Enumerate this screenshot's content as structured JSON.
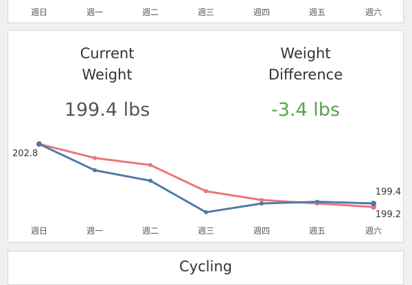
{
  "days": [
    "週日",
    "週一",
    "週二",
    "週三",
    "週四",
    "週五",
    "週六"
  ],
  "kpis": {
    "current_weight_title": "Current\nWeight",
    "current_weight_value": "199.4 lbs",
    "difference_title": "Weight\nDifference",
    "difference_value": "-3.4 lbs"
  },
  "colors": {
    "blue_series": "#4e79a7",
    "red_series": "#e8777a",
    "positive_change": "#59a14f"
  },
  "chart_data": {
    "type": "line",
    "categories": [
      "週日",
      "週一",
      "週二",
      "週三",
      "週四",
      "週五",
      "週六"
    ],
    "series": [
      {
        "values": [
          202.8,
          201.3,
          200.7,
          198.9,
          199.4,
          199.5,
          199.4
        ],
        "color": "#4e79a7"
      },
      {
        "values": [
          202.8,
          202.0,
          201.6,
          200.1,
          199.6,
          199.4,
          199.2
        ],
        "color": "#e8777a"
      }
    ],
    "value_labels": {
      "start": "202.8",
      "end_top": "199.4",
      "end_bottom": "199.2"
    },
    "ylim": [
      198.5,
      203.2
    ]
  },
  "cycling": {
    "title": "Cycling"
  }
}
